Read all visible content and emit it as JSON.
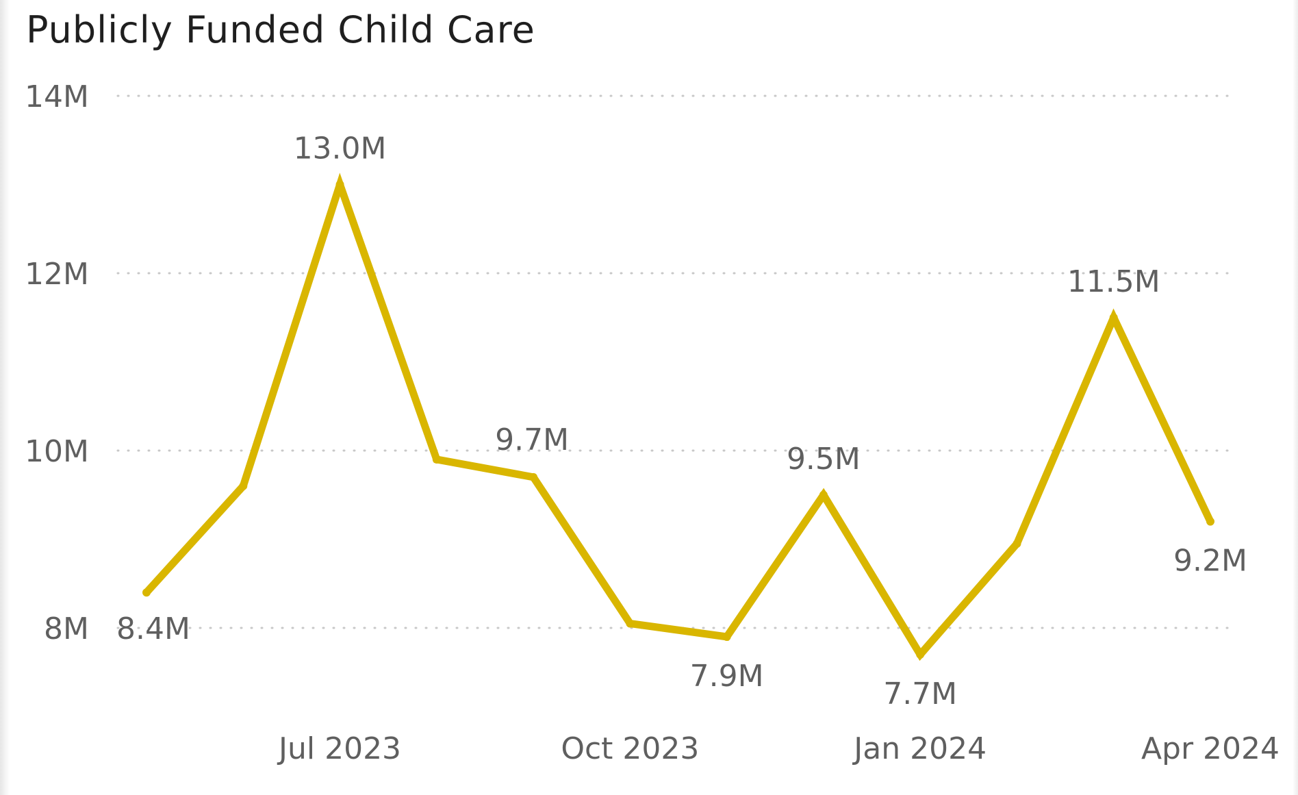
{
  "chart_data": {
    "type": "line",
    "title": "Publicly Funded Child Care",
    "xlabel": "",
    "ylabel": "",
    "x": [
      "May 2023",
      "Jun 2023",
      "Jul 2023",
      "Aug 2023",
      "Sep 2023",
      "Oct 2023",
      "Nov 2023",
      "Dec 2023",
      "Jan 2024",
      "Feb 2024",
      "Mar 2024",
      "Apr 2024"
    ],
    "x_tick_labels": [
      "Jul 2023",
      "Oct 2023",
      "Jan 2024",
      "Apr 2024"
    ],
    "series": [
      {
        "values": [
          8.4,
          9.6,
          13.0,
          9.9,
          9.7,
          8.05,
          7.9,
          9.5,
          7.7,
          8.95,
          11.5,
          9.2
        ],
        "color": "#d9b600",
        "data_labels": [
          "8.4M",
          null,
          "13.0M",
          null,
          "9.7M",
          null,
          "7.9M",
          "9.5M",
          "7.7M",
          null,
          "11.5M",
          "9.2M"
        ]
      }
    ],
    "y_ticks": [
      8,
      10,
      12,
      14
    ],
    "y_tick_labels": [
      "8M",
      "10M",
      "12M",
      "14M"
    ],
    "ylim": [
      7.0,
      14.0
    ],
    "grid": "horizontal dotted",
    "legend": "none"
  }
}
